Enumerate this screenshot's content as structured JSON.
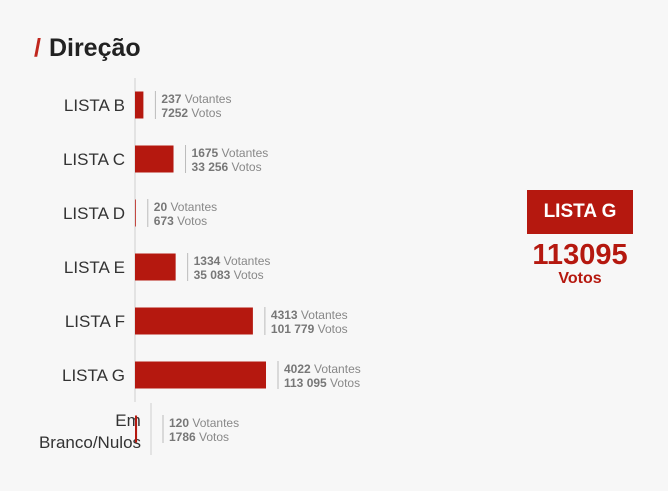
{
  "header": {
    "slash": "/",
    "title": "Direção"
  },
  "winner": {
    "label": "LISTA G",
    "value": "113095",
    "unit": "Votos"
  },
  "chart_data": {
    "type": "bar",
    "orientation": "horizontal",
    "categories": [
      "LISTA B",
      "LISTA C",
      "LISTA D",
      "LISTA E",
      "LISTA F",
      "LISTA G",
      "Em Branco/Nulos"
    ],
    "votantes_display": [
      "237",
      "1675",
      "20",
      "1334",
      "4313",
      "4022",
      "120"
    ],
    "votos_display": [
      "7252",
      "33 256",
      "673",
      "35 083",
      "101 779",
      "113 095",
      "1786"
    ],
    "votantes_label": "Votantes",
    "votos_label": "Votos",
    "series": [
      {
        "values": [
          7252,
          33256,
          673,
          35083,
          101779,
          113095,
          1786
        ]
      }
    ],
    "bar_color": "#b5180f",
    "grid": false,
    "legend": "none"
  }
}
